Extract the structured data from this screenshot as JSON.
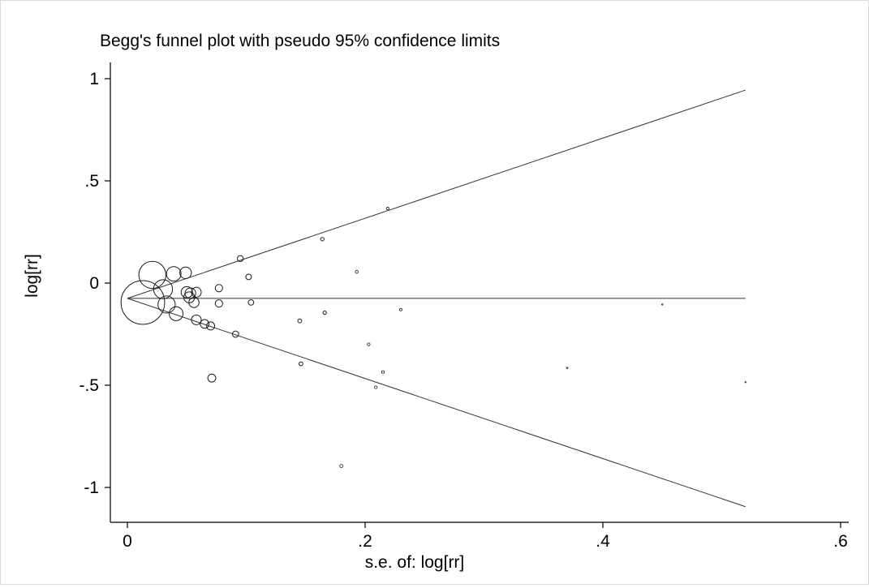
{
  "chart_data": {
    "type": "scatter",
    "title": "Begg's funnel plot with pseudo 95% confidence limits",
    "xlabel": "s.e. of: log[rr]",
    "ylabel": "log[rr]",
    "xlim": [
      0,
      0.6
    ],
    "ylim": [
      -1.1,
      1.05
    ],
    "x_ticks": [
      {
        "value": 0,
        "label": "0"
      },
      {
        "value": 0.2,
        "label": ".2"
      },
      {
        "value": 0.4,
        "label": ".4"
      },
      {
        "value": 0.6,
        "label": ".6"
      }
    ],
    "y_ticks": [
      {
        "value": 1,
        "label": "1"
      },
      {
        "value": 0.5,
        "label": ".5"
      },
      {
        "value": 0,
        "label": "0"
      },
      {
        "value": -0.5,
        "label": "-.5"
      },
      {
        "value": -1,
        "label": "-1"
      }
    ],
    "pooled_estimate": -0.075,
    "pseudo_ci_max_se": 0.52,
    "grid": false,
    "legend": "none",
    "points": [
      {
        "se": 0.013,
        "log_rr": -0.095,
        "weight": 5917
      },
      {
        "se": 0.021,
        "log_rr": 0.04,
        "weight": 2268
      },
      {
        "se": 0.03,
        "log_rr": -0.03,
        "weight": 1111
      },
      {
        "se": 0.033,
        "log_rr": -0.105,
        "weight": 918
      },
      {
        "se": 0.039,
        "log_rr": 0.045,
        "weight": 657
      },
      {
        "se": 0.041,
        "log_rr": -0.15,
        "weight": 595
      },
      {
        "se": 0.049,
        "log_rr": 0.05,
        "weight": 416
      },
      {
        "se": 0.05,
        "log_rr": -0.045,
        "weight": 400
      },
      {
        "se": 0.052,
        "log_rr": -0.07,
        "weight": 370
      },
      {
        "se": 0.053,
        "log_rr": -0.05,
        "weight": 356
      },
      {
        "se": 0.056,
        "log_rr": -0.095,
        "weight": 319
      },
      {
        "se": 0.058,
        "log_rr": -0.045,
        "weight": 297
      },
      {
        "se": 0.058,
        "log_rr": -0.18,
        "weight": 297
      },
      {
        "se": 0.065,
        "log_rr": -0.2,
        "weight": 237
      },
      {
        "se": 0.07,
        "log_rr": -0.21,
        "weight": 204
      },
      {
        "se": 0.071,
        "log_rr": -0.465,
        "weight": 198
      },
      {
        "se": 0.077,
        "log_rr": -0.025,
        "weight": 169
      },
      {
        "se": 0.077,
        "log_rr": -0.1,
        "weight": 169
      },
      {
        "se": 0.091,
        "log_rr": -0.25,
        "weight": 121
      },
      {
        "se": 0.095,
        "log_rr": 0.12,
        "weight": 111
      },
      {
        "se": 0.102,
        "log_rr": 0.03,
        "weight": 96
      },
      {
        "se": 0.104,
        "log_rr": -0.095,
        "weight": 92
      },
      {
        "se": 0.145,
        "log_rr": -0.185,
        "weight": 48
      },
      {
        "se": 0.146,
        "log_rr": -0.395,
        "weight": 47
      },
      {
        "se": 0.164,
        "log_rr": 0.215,
        "weight": 37
      },
      {
        "se": 0.166,
        "log_rr": -0.145,
        "weight": 36
      },
      {
        "se": 0.18,
        "log_rr": -0.895,
        "weight": 31
      },
      {
        "se": 0.193,
        "log_rr": 0.055,
        "weight": 27
      },
      {
        "se": 0.203,
        "log_rr": -0.3,
        "weight": 24
      },
      {
        "se": 0.209,
        "log_rr": -0.51,
        "weight": 23
      },
      {
        "se": 0.215,
        "log_rr": -0.435,
        "weight": 22
      },
      {
        "se": 0.219,
        "log_rr": 0.365,
        "weight": 21
      },
      {
        "se": 0.23,
        "log_rr": -0.13,
        "weight": 19
      },
      {
        "se": 0.37,
        "log_rr": -0.415,
        "weight": 7
      },
      {
        "se": 0.45,
        "log_rr": -0.105,
        "weight": 5
      },
      {
        "se": 0.52,
        "log_rr": -0.485,
        "weight": 4
      }
    ]
  }
}
